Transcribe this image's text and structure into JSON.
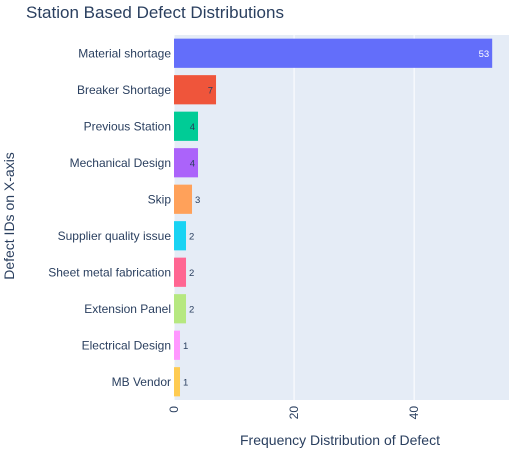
{
  "chart_data": {
    "type": "bar",
    "orientation": "horizontal",
    "title": "Station Based Defect Distributions",
    "xlabel": "Frequency Distribution of Defect",
    "ylabel": "Defect IDs on X-axis",
    "xlim": [
      0,
      55.8
    ],
    "xticks": [
      0,
      20,
      40
    ],
    "grid": true,
    "categories": [
      "Material shortage",
      "Breaker Shortage",
      "Previous Station",
      "Mechanical Design",
      "Skip",
      "Supplier quality issue",
      "Sheet metal fabrication",
      "Extension Panel",
      "Electrical Design",
      "MB Vendor"
    ],
    "values": [
      53,
      7,
      4,
      4,
      3,
      2,
      2,
      2,
      1,
      1
    ],
    "colors": [
      "#636efa",
      "#ef553b",
      "#00cc96",
      "#ab63fa",
      "#ffa15a",
      "#19d3f3",
      "#ff6692",
      "#b6e880",
      "#ff97ff",
      "#fecb52"
    ],
    "label_colors": [
      "#ffffff",
      "#2a3f5f",
      "#2a3f5f",
      "#2a3f5f",
      "#2a3f5f",
      "#2a3f5f",
      "#2a3f5f",
      "#2a3f5f",
      "#2a3f5f",
      "#2a3f5f"
    ],
    "plot_bg": "#e5ecf6",
    "grid_color": "#ffffff",
    "text_color": "#2a3f5f"
  }
}
